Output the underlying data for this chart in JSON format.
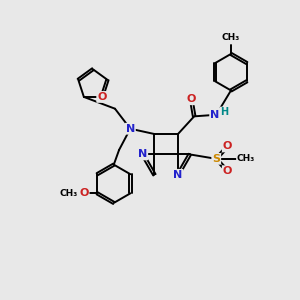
{
  "background_color": "#e8e8e8",
  "bond_color": "#000000",
  "nitrogen_color": "#2222cc",
  "oxygen_color": "#cc2222",
  "sulfur_color": "#cc8800",
  "hydrogen_color": "#008888",
  "text_color": "#000000",
  "figsize": [
    3.0,
    3.0
  ],
  "dpi": 100,
  "xlim": [
    0,
    10
  ],
  "ylim": [
    0,
    10
  ]
}
